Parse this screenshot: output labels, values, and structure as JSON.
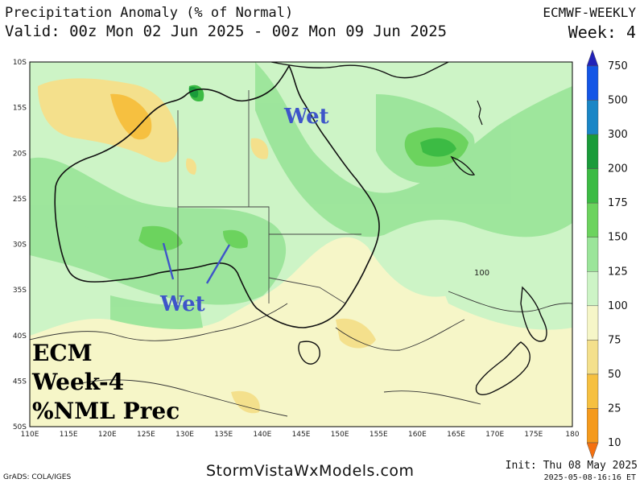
{
  "header": {
    "title": "Precipitation Anomaly (% of Normal)",
    "valid": "Valid: 00z Mon 02 Jun 2025 - 00z Mon 09 Jun 2025",
    "model": "ECMWF-WEEKLY",
    "week": "Week: 4"
  },
  "map": {
    "lat_labels": [
      "10S",
      "15S",
      "20S",
      "25S",
      "30S",
      "35S",
      "40S",
      "45S",
      "50S"
    ],
    "lon_labels": [
      "110E",
      "115E",
      "120E",
      "125E",
      "130E",
      "135E",
      "140E",
      "145E",
      "150E",
      "155E",
      "160E",
      "165E",
      "170E",
      "175E",
      "180"
    ],
    "annotations": [
      "Wet",
      "Wet"
    ],
    "contour_label": "100",
    "overlay_lines": [
      "ECM",
      "Week-4",
      "%NML Prec"
    ]
  },
  "legend": {
    "levels": [
      "750",
      "500",
      "300",
      "200",
      "175",
      "150",
      "125",
      "100",
      "75",
      "50",
      "25",
      "10"
    ],
    "colors": [
      "#2222b8",
      "#1456e6",
      "#1a86c6",
      "#1a9b3a",
      "#3cbb44",
      "#6cd35e",
      "#9be59a",
      "#cdf4c6",
      "#f6f6c8",
      "#f4e08c",
      "#f6c040",
      "#f59a1c",
      "#f47010"
    ]
  },
  "footer": {
    "credit": "GrADS: COLA/IGES",
    "site": "StormVistaWxModels.com",
    "init": "Init: Thu 08 May 2025",
    "timestamp": "2025-05-08-16:16 ET"
  }
}
